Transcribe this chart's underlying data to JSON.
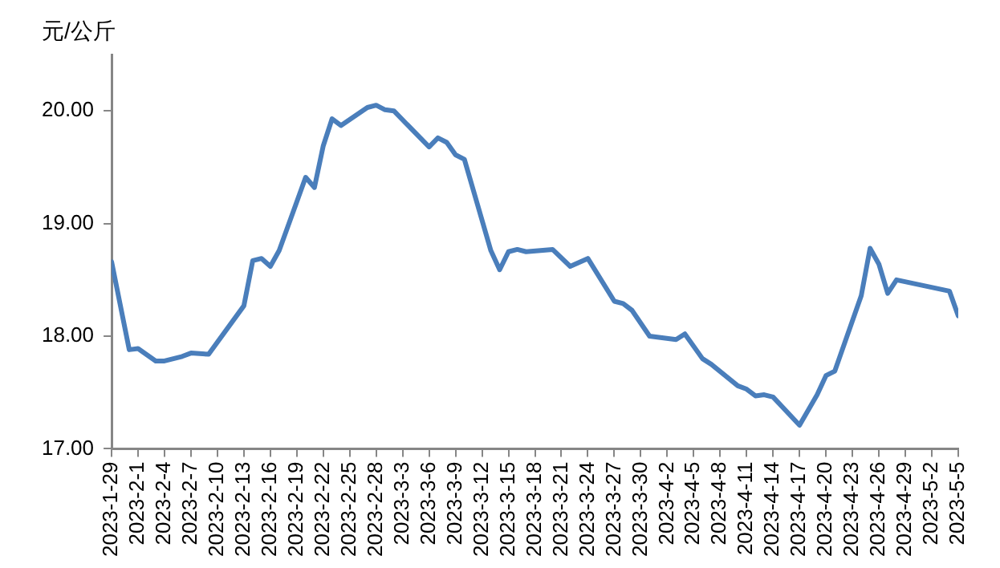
{
  "chart_data": {
    "type": "line",
    "ylabel": "元/公斤",
    "x": [
      "2023-01-29",
      "2023-01-31",
      "2023-02-01",
      "2023-02-03",
      "2023-02-04",
      "2023-02-06",
      "2023-02-07",
      "2023-02-09",
      "2023-02-13",
      "2023-02-14",
      "2023-02-15",
      "2023-02-16",
      "2023-02-17",
      "2023-02-20",
      "2023-02-21",
      "2023-02-22",
      "2023-02-23",
      "2023-02-24",
      "2023-02-27",
      "2023-02-28",
      "2023-03-01",
      "2023-03-02",
      "2023-03-06",
      "2023-03-07",
      "2023-03-08",
      "2023-03-09",
      "2023-03-10",
      "2023-03-13",
      "2023-03-14",
      "2023-03-15",
      "2023-03-16",
      "2023-03-17",
      "2023-03-20",
      "2023-03-22",
      "2023-03-24",
      "2023-03-27",
      "2023-03-28",
      "2023-03-29",
      "2023-03-31",
      "2023-04-03",
      "2023-04-04",
      "2023-04-06",
      "2023-04-07",
      "2023-04-10",
      "2023-04-11",
      "2023-04-12",
      "2023-04-13",
      "2023-04-14",
      "2023-04-17",
      "2023-04-19",
      "2023-04-20",
      "2023-04-21",
      "2023-04-24",
      "2023-04-25",
      "2023-04-26",
      "2023-04-27",
      "2023-04-28",
      "2023-05-04",
      "2023-05-05"
    ],
    "series": [
      {
        "color": "#4a7ebb",
        "values": [
          18.66,
          17.88,
          17.89,
          17.78,
          17.78,
          17.82,
          17.85,
          17.84,
          18.27,
          18.67,
          18.69,
          18.62,
          18.76,
          19.41,
          19.32,
          19.69,
          19.93,
          19.87,
          20.03,
          20.05,
          20.01,
          20.0,
          19.68,
          19.76,
          19.72,
          19.61,
          19.57,
          18.76,
          18.59,
          18.75,
          18.77,
          18.75,
          18.77,
          18.62,
          18.69,
          18.31,
          18.29,
          18.23,
          18.0,
          17.97,
          18.02,
          17.8,
          17.75,
          17.56,
          17.53,
          17.47,
          17.48,
          17.46,
          17.21,
          17.48,
          17.65,
          17.69,
          18.36,
          18.78,
          18.64,
          18.38,
          18.5,
          18.4,
          18.18
        ]
      }
    ],
    "xlim": [
      "2023-01-29",
      "2023-05-05"
    ],
    "xticks": [
      {
        "value": "2023-01-29",
        "label": "2023-1-29"
      },
      {
        "value": "2023-02-01",
        "label": "2023-2-1"
      },
      {
        "value": "2023-02-04",
        "label": "2023-2-4"
      },
      {
        "value": "2023-02-07",
        "label": "2023-2-7"
      },
      {
        "value": "2023-02-10",
        "label": "2023-2-10"
      },
      {
        "value": "2023-02-13",
        "label": "2023-2-13"
      },
      {
        "value": "2023-02-16",
        "label": "2023-2-16"
      },
      {
        "value": "2023-02-19",
        "label": "2023-2-19"
      },
      {
        "value": "2023-02-22",
        "label": "2023-2-22"
      },
      {
        "value": "2023-02-25",
        "label": "2023-2-25"
      },
      {
        "value": "2023-02-28",
        "label": "2023-2-28"
      },
      {
        "value": "2023-03-03",
        "label": "2023-3-3"
      },
      {
        "value": "2023-03-06",
        "label": "2023-3-6"
      },
      {
        "value": "2023-03-09",
        "label": "2023-3-9"
      },
      {
        "value": "2023-03-12",
        "label": "2023-3-12"
      },
      {
        "value": "2023-03-15",
        "label": "2023-3-15"
      },
      {
        "value": "2023-03-18",
        "label": "2023-3-18"
      },
      {
        "value": "2023-03-21",
        "label": "2023-3-21"
      },
      {
        "value": "2023-03-24",
        "label": "2023-3-24"
      },
      {
        "value": "2023-03-27",
        "label": "2023-3-27"
      },
      {
        "value": "2023-03-30",
        "label": "2023-3-30"
      },
      {
        "value": "2023-04-02",
        "label": "2023-4-2"
      },
      {
        "value": "2023-04-05",
        "label": "2023-4-5"
      },
      {
        "value": "2023-04-08",
        "label": "2023-4-8"
      },
      {
        "value": "2023-04-11",
        "label": "2023-4-11"
      },
      {
        "value": "2023-04-14",
        "label": "2023-4-14"
      },
      {
        "value": "2023-04-17",
        "label": "2023-4-17"
      },
      {
        "value": "2023-04-20",
        "label": "2023-4-20"
      },
      {
        "value": "2023-04-23",
        "label": "2023-4-23"
      },
      {
        "value": "2023-04-26",
        "label": "2023-4-26"
      },
      {
        "value": "2023-04-29",
        "label": "2023-4-29"
      },
      {
        "value": "2023-05-02",
        "label": "2023-5-2"
      },
      {
        "value": "2023-05-05",
        "label": "2023-5-5"
      }
    ],
    "ylim": [
      17,
      20.5
    ],
    "yticks": [
      {
        "value": 17,
        "label": "17.00"
      },
      {
        "value": 18,
        "label": "18.00"
      },
      {
        "value": 19,
        "label": "19.00"
      },
      {
        "value": 20,
        "label": "20.00"
      }
    ],
    "grid": false,
    "legend": false,
    "marker": "none",
    "line_style": "solid"
  }
}
